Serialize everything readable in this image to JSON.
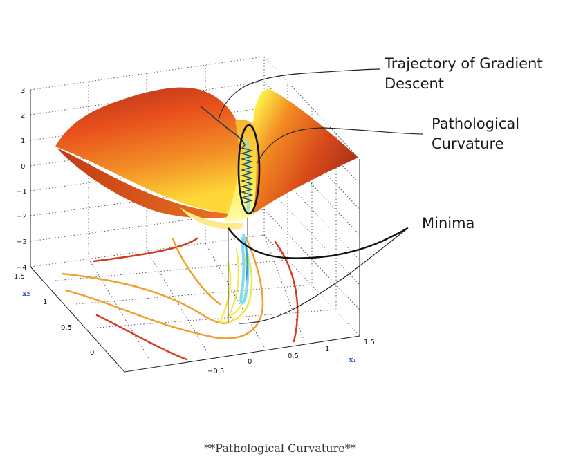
{
  "annotations": {
    "trajectory_line1": "Trajectory of Gradient",
    "trajectory_line2": "Descent",
    "pathological_line1": "Pathological",
    "pathological_line2": "Curvature",
    "minima": "Minima"
  },
  "z_ticks": [
    "3",
    "2",
    "1",
    "0",
    "−1",
    "−2",
    "−3",
    "−4"
  ],
  "x2_ticks": [
    "1.5",
    "1",
    "0.5",
    "0"
  ],
  "x1_ticks": [
    "−0.5",
    "0",
    "0.5",
    "1",
    "1.5"
  ],
  "axis_labels": {
    "x1": "x₁",
    "x2": "x₂"
  },
  "caption": "**Pathological Curvature**",
  "colors": {
    "surface_dark": "#b03018",
    "surface_mid": "#f07020",
    "surface_light": "#ffe640",
    "contour_red": "#d63a1e",
    "contour_orange": "#f0a030",
    "contour_yellow": "#f2e840",
    "contour_cyan": "#7fdcf0",
    "trajectory": "#1d3a4a"
  }
}
